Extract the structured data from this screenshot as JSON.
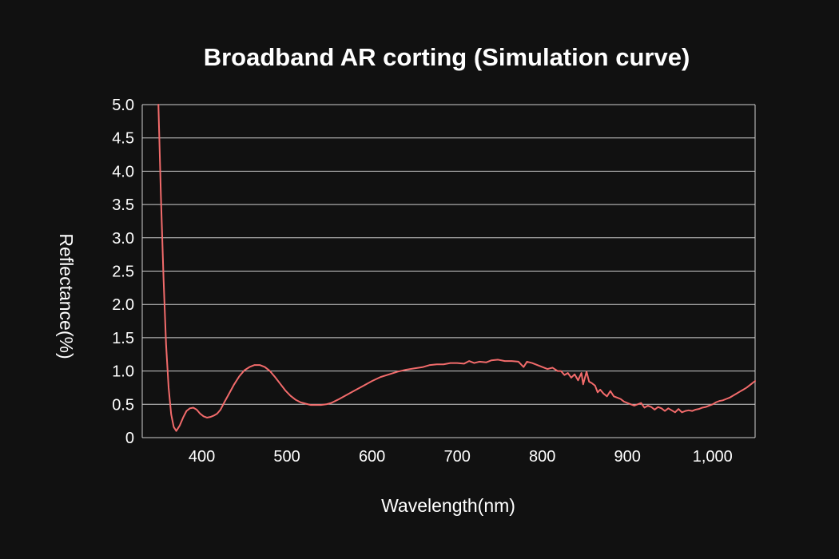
{
  "chart_data": {
    "type": "line",
    "title": "Broadband AR corting (Simulation curve)",
    "xlabel": "Wavelength(nm)",
    "ylabel": "Reflectance(%)",
    "xlim": [
      330,
      1050
    ],
    "ylim": [
      0,
      5.0
    ],
    "x_ticks": [
      400,
      500,
      600,
      700,
      800,
      900,
      1000
    ],
    "x_tick_labels": [
      "400",
      "500",
      "600",
      "700",
      "800",
      "900",
      "1,000"
    ],
    "y_ticks": [
      0,
      0.5,
      1.0,
      1.5,
      2.0,
      2.5,
      3.0,
      3.5,
      4.0,
      4.5,
      5.0
    ],
    "y_tick_labels": [
      "0",
      "0.5",
      "1.0",
      "1.5",
      "2.0",
      "2.5",
      "3.0",
      "3.5",
      "4.0",
      "4.5",
      "5.0"
    ],
    "grid": "horizontal",
    "colors": {
      "background": "#111111",
      "line": "#f26b6b",
      "grid": "#cfcfcf",
      "text": "#ffffff"
    },
    "series": [
      {
        "points": [
          [
            349,
            5.0
          ],
          [
            352,
            3.6
          ],
          [
            355,
            2.4
          ],
          [
            358,
            1.4
          ],
          [
            361,
            0.75
          ],
          [
            364,
            0.35
          ],
          [
            367,
            0.16
          ],
          [
            370,
            0.1
          ],
          [
            374,
            0.18
          ],
          [
            378,
            0.3
          ],
          [
            382,
            0.4
          ],
          [
            386,
            0.44
          ],
          [
            390,
            0.45
          ],
          [
            394,
            0.42
          ],
          [
            398,
            0.36
          ],
          [
            402,
            0.32
          ],
          [
            406,
            0.3
          ],
          [
            410,
            0.31
          ],
          [
            414,
            0.33
          ],
          [
            418,
            0.36
          ],
          [
            422,
            0.42
          ],
          [
            426,
            0.52
          ],
          [
            432,
            0.66
          ],
          [
            438,
            0.8
          ],
          [
            444,
            0.92
          ],
          [
            450,
            1.01
          ],
          [
            456,
            1.06
          ],
          [
            462,
            1.09
          ],
          [
            468,
            1.09
          ],
          [
            474,
            1.06
          ],
          [
            480,
            1.0
          ],
          [
            486,
            0.91
          ],
          [
            492,
            0.81
          ],
          [
            498,
            0.71
          ],
          [
            504,
            0.63
          ],
          [
            510,
            0.57
          ],
          [
            516,
            0.53
          ],
          [
            522,
            0.51
          ],
          [
            528,
            0.49
          ],
          [
            534,
            0.49
          ],
          [
            540,
            0.49
          ],
          [
            546,
            0.5
          ],
          [
            552,
            0.52
          ],
          [
            560,
            0.57
          ],
          [
            570,
            0.64
          ],
          [
            580,
            0.71
          ],
          [
            590,
            0.78
          ],
          [
            600,
            0.85
          ],
          [
            610,
            0.91
          ],
          [
            620,
            0.95
          ],
          [
            630,
            0.99
          ],
          [
            640,
            1.02
          ],
          [
            650,
            1.04
          ],
          [
            660,
            1.06
          ],
          [
            668,
            1.09
          ],
          [
            676,
            1.1
          ],
          [
            684,
            1.1
          ],
          [
            692,
            1.12
          ],
          [
            700,
            1.12
          ],
          [
            708,
            1.11
          ],
          [
            714,
            1.15
          ],
          [
            720,
            1.12
          ],
          [
            726,
            1.14
          ],
          [
            734,
            1.13
          ],
          [
            740,
            1.16
          ],
          [
            748,
            1.17
          ],
          [
            756,
            1.15
          ],
          [
            764,
            1.15
          ],
          [
            772,
            1.14
          ],
          [
            778,
            1.06
          ],
          [
            782,
            1.14
          ],
          [
            788,
            1.12
          ],
          [
            794,
            1.09
          ],
          [
            800,
            1.06
          ],
          [
            806,
            1.03
          ],
          [
            812,
            1.05
          ],
          [
            818,
            1.0
          ],
          [
            822,
            1.0
          ],
          [
            826,
            0.94
          ],
          [
            830,
            0.97
          ],
          [
            834,
            0.9
          ],
          [
            838,
            0.95
          ],
          [
            842,
            0.86
          ],
          [
            846,
            0.97
          ],
          [
            848,
            0.8
          ],
          [
            852,
            0.99
          ],
          [
            855,
            0.84
          ],
          [
            858,
            0.82
          ],
          [
            862,
            0.78
          ],
          [
            865,
            0.68
          ],
          [
            868,
            0.72
          ],
          [
            872,
            0.66
          ],
          [
            876,
            0.62
          ],
          [
            880,
            0.7
          ],
          [
            884,
            0.62
          ],
          [
            888,
            0.6
          ],
          [
            892,
            0.58
          ],
          [
            896,
            0.54
          ],
          [
            900,
            0.52
          ],
          [
            904,
            0.5
          ],
          [
            908,
            0.48
          ],
          [
            912,
            0.5
          ],
          [
            916,
            0.52
          ],
          [
            920,
            0.45
          ],
          [
            924,
            0.48
          ],
          [
            928,
            0.46
          ],
          [
            932,
            0.42
          ],
          [
            936,
            0.46
          ],
          [
            940,
            0.44
          ],
          [
            944,
            0.4
          ],
          [
            948,
            0.44
          ],
          [
            952,
            0.41
          ],
          [
            956,
            0.38
          ],
          [
            960,
            0.43
          ],
          [
            964,
            0.38
          ],
          [
            968,
            0.4
          ],
          [
            972,
            0.41
          ],
          [
            976,
            0.4
          ],
          [
            980,
            0.42
          ],
          [
            984,
            0.43
          ],
          [
            988,
            0.45
          ],
          [
            992,
            0.46
          ],
          [
            996,
            0.48
          ],
          [
            1000,
            0.5
          ],
          [
            1004,
            0.53
          ],
          [
            1008,
            0.55
          ],
          [
            1012,
            0.56
          ],
          [
            1016,
            0.58
          ],
          [
            1020,
            0.6
          ],
          [
            1024,
            0.63
          ],
          [
            1028,
            0.66
          ],
          [
            1032,
            0.69
          ],
          [
            1036,
            0.72
          ],
          [
            1040,
            0.75
          ],
          [
            1045,
            0.8
          ],
          [
            1050,
            0.85
          ]
        ]
      }
    ]
  }
}
